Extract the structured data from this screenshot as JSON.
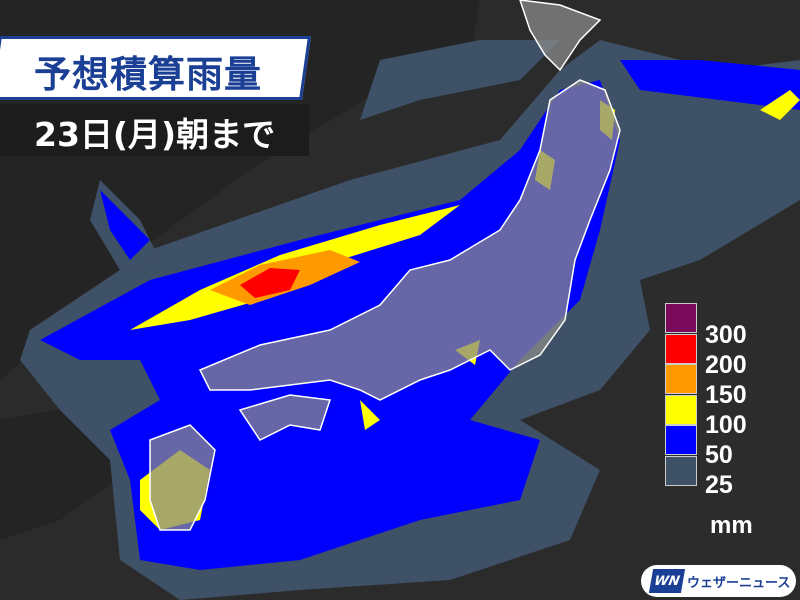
{
  "title": "予想積算雨量",
  "subtitle": "23日(月)朝まで",
  "legend": {
    "unit": "mm",
    "items": [
      {
        "label": "300",
        "color": "#7b0a5c"
      },
      {
        "label": "200",
        "color": "#ff0000"
      },
      {
        "label": "150",
        "color": "#ff9900"
      },
      {
        "label": "100",
        "color": "#ffff00"
      },
      {
        "label": "50",
        "color": "#0000ff"
      },
      {
        "label": "25",
        "color": "#3f5166"
      }
    ]
  },
  "logo": {
    "mark": "WN",
    "text": "ウェザーニュース"
  }
}
